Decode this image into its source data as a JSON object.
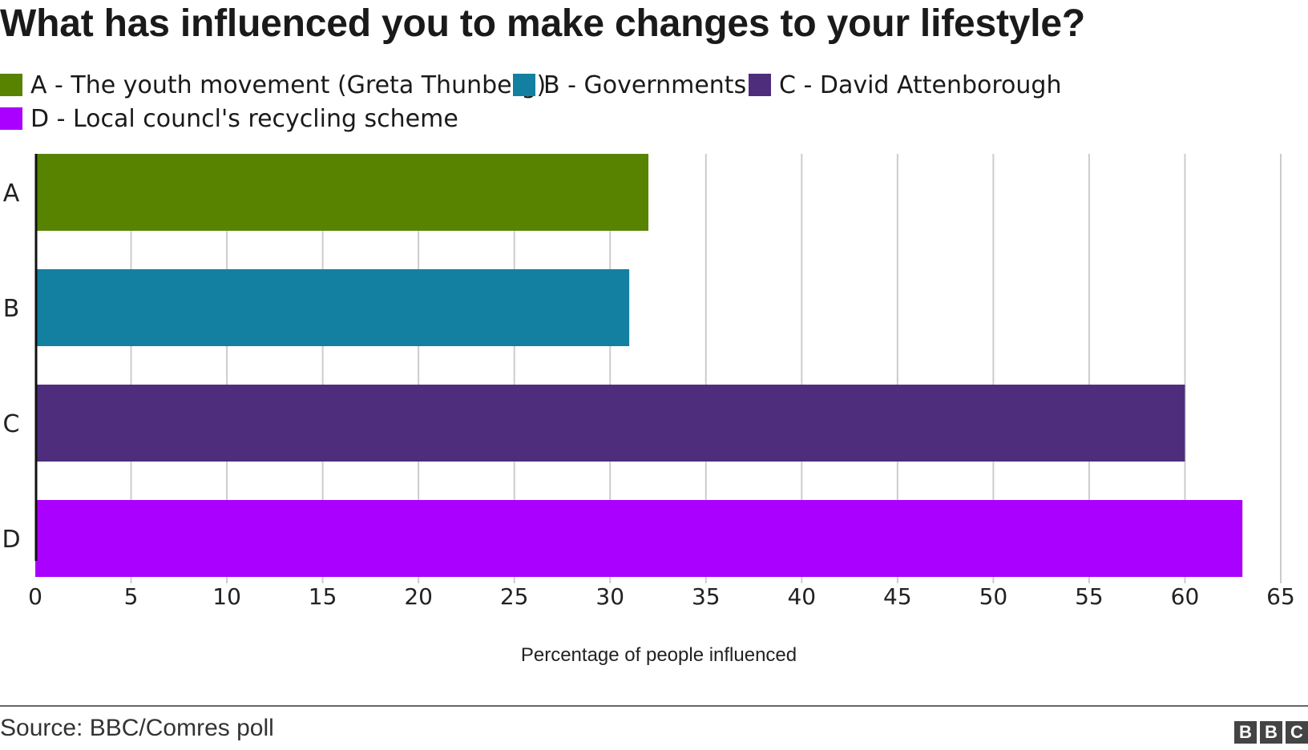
{
  "chart_data": {
    "type": "bar",
    "orientation": "horizontal",
    "title": "What has influenced you to make changes to your lifestyle?",
    "categories": [
      "A",
      "B",
      "C",
      "D"
    ],
    "values": [
      32,
      31,
      60,
      63
    ],
    "colors": [
      "#588300",
      "#1380a1",
      "#4d2d7c",
      "#aa00ff"
    ],
    "legend": [
      {
        "label": "A - The youth movement (Greta Thunberg)",
        "color": "#588300"
      },
      {
        "label": "B - Governments",
        "color": "#1380a1"
      },
      {
        "label": "C - David Attenborough",
        "color": "#4d2d7c"
      },
      {
        "label": "D - Local councl's recycling scheme",
        "color": "#aa00ff"
      }
    ],
    "legend_position": "top-left",
    "xlabel": "Percentage of people influenced",
    "ylabel": "",
    "xlim": [
      0,
      65
    ],
    "xticks": [
      0,
      5,
      10,
      15,
      20,
      25,
      30,
      35,
      40,
      45,
      50,
      55,
      60,
      65
    ],
    "grid": "vertical"
  },
  "footer": {
    "source": "Source: BBC/Comres poll",
    "logo_letters": [
      "B",
      "B",
      "C"
    ]
  }
}
